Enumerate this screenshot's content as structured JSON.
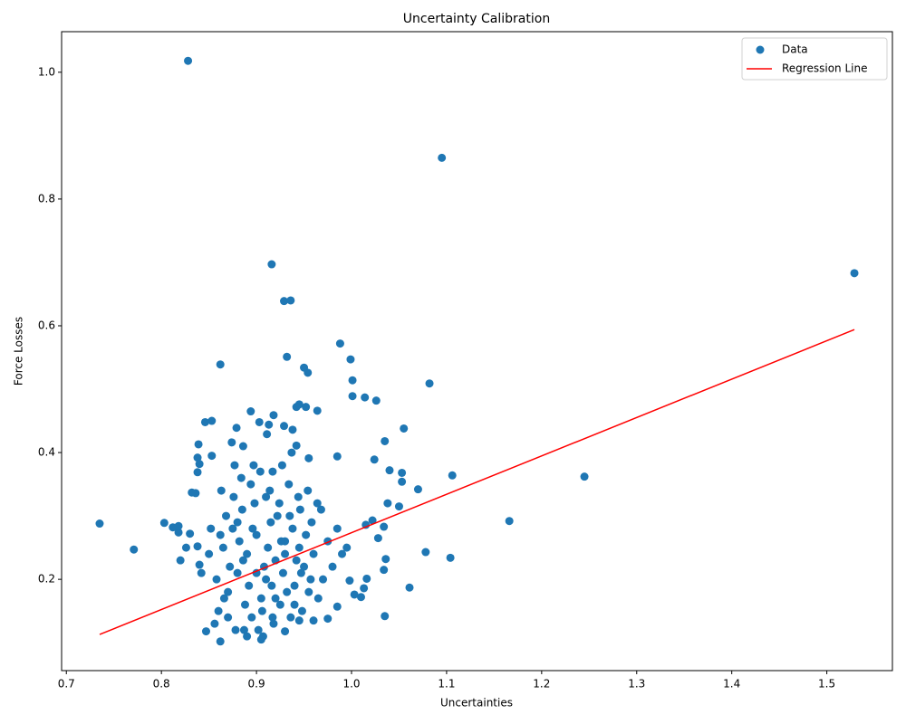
{
  "chart_data": {
    "type": "scatter",
    "title": "Uncertainty Calibration",
    "x_label": "Uncertainties",
    "y_label": "Force Losses",
    "xlim": [
      0.695,
      1.569
    ],
    "ylim": [
      0.056,
      1.064
    ],
    "xticks": [
      0.7,
      0.8,
      0.9,
      {
        "value": 1.0,
        "label": "1.0"
      },
      1.1,
      1.2,
      1.3,
      1.4,
      1.5
    ],
    "yticks": [
      0.2,
      0.4,
      0.6,
      0.8,
      {
        "value": 1.0,
        "label": "1.0"
      }
    ],
    "grid": false,
    "legend": "upper right",
    "series": [
      {
        "name": "Data",
        "type": "scatter",
        "color": "#1f77b4",
        "x": [
          0.828,
          1.095,
          0.916,
          1.529,
          0.929,
          0.936,
          0.862,
          0.988,
          0.932,
          0.999,
          0.95,
          0.954,
          1.001,
          1.082,
          1.001,
          1.014,
          1.026,
          0.945,
          0.942,
          0.952,
          0.964,
          0.894,
          0.918,
          0.846,
          0.853,
          0.903,
          0.913,
          0.929,
          0.879,
          1.055,
          0.938,
          0.911,
          1.035,
          0.839,
          0.874,
          0.942,
          0.886,
          1.106,
          1.245,
          1.166,
          0.735,
          0.771,
          0.803,
          1.07,
          1.053,
          1.04,
          1.024,
          0.985,
          0.955,
          1.104,
          1.078,
          1.061,
          1.035,
          0.862,
          0.905,
          0.93,
          0.847,
          1.053,
          1.05,
          1.038,
          1.034,
          1.022,
          1.015,
          1.028,
          1.036,
          1.034,
          1.016,
          1.01,
          1.003,
          0.818,
          0.812,
          0.818,
          0.83,
          0.82,
          0.826,
          0.838,
          0.84,
          0.842,
          0.836,
          0.832,
          0.838,
          0.84,
          0.838,
          0.853,
          0.975,
          0.945,
          0.96,
          0.985,
          0.998,
          1.013,
          0.86,
          0.87,
          0.88,
          0.89,
          0.9,
          0.91,
          0.92,
          0.93,
          0.94,
          0.95,
          0.865,
          0.875,
          0.885,
          0.895,
          0.905,
          0.915,
          0.925,
          0.935,
          0.945,
          0.955,
          0.858,
          0.868,
          0.878,
          0.888,
          0.898,
          0.908,
          0.918,
          0.928,
          0.938,
          0.948,
          0.862,
          0.872,
          0.882,
          0.892,
          0.902,
          0.912,
          0.922,
          0.932,
          0.942,
          0.952,
          0.856,
          0.866,
          0.876,
          0.886,
          0.896,
          0.906,
          0.916,
          0.926,
          0.936,
          0.946,
          0.87,
          0.88,
          0.89,
          0.9,
          0.91,
          0.92,
          0.93,
          0.94,
          0.96,
          0.97,
          0.975,
          0.98,
          0.99,
          0.965,
          0.958,
          0.968,
          0.985,
          0.995,
          0.85,
          0.852,
          0.863,
          0.884,
          0.894,
          0.904,
          0.914,
          0.924,
          0.934,
          0.944,
          0.954,
          0.964,
          0.877,
          0.897,
          0.917,
          0.937,
          0.927,
          0.907,
          0.887,
          0.917,
          0.957,
          0.947
        ],
        "values": [
          1.018,
          0.865,
          0.697,
          0.683,
          0.639,
          0.64,
          0.539,
          0.572,
          0.551,
          0.547,
          0.534,
          0.526,
          0.514,
          0.509,
          0.489,
          0.487,
          0.482,
          0.476,
          0.472,
          0.472,
          0.466,
          0.465,
          0.459,
          0.448,
          0.45,
          0.448,
          0.444,
          0.442,
          0.439,
          0.438,
          0.436,
          0.429,
          0.418,
          0.413,
          0.416,
          0.411,
          0.41,
          0.364,
          0.362,
          0.292,
          0.288,
          0.247,
          0.289,
          0.342,
          0.368,
          0.372,
          0.389,
          0.394,
          0.391,
          0.234,
          0.243,
          0.187,
          0.142,
          0.102,
          0.105,
          0.118,
          0.118,
          0.354,
          0.315,
          0.32,
          0.283,
          0.293,
          0.286,
          0.265,
          0.232,
          0.215,
          0.201,
          0.172,
          0.176,
          0.274,
          0.282,
          0.284,
          0.272,
          0.23,
          0.25,
          0.252,
          0.223,
          0.21,
          0.336,
          0.337,
          0.369,
          0.382,
          0.392,
          0.395,
          0.138,
          0.135,
          0.135,
          0.157,
          0.198,
          0.186,
          0.15,
          0.18,
          0.21,
          0.24,
          0.27,
          0.2,
          0.23,
          0.26,
          0.19,
          0.22,
          0.25,
          0.28,
          0.31,
          0.14,
          0.17,
          0.29,
          0.16,
          0.3,
          0.25,
          0.18,
          0.2,
          0.3,
          0.12,
          0.16,
          0.32,
          0.22,
          0.13,
          0.21,
          0.28,
          0.15,
          0.27,
          0.22,
          0.26,
          0.19,
          0.12,
          0.25,
          0.3,
          0.18,
          0.23,
          0.27,
          0.13,
          0.17,
          0.33,
          0.23,
          0.28,
          0.15,
          0.19,
          0.26,
          0.14,
          0.31,
          0.14,
          0.29,
          0.11,
          0.21,
          0.33,
          0.17,
          0.24,
          0.16,
          0.24,
          0.2,
          0.26,
          0.22,
          0.24,
          0.17,
          0.29,
          0.31,
          0.28,
          0.25,
          0.24,
          0.28,
          0.34,
          0.36,
          0.35,
          0.37,
          0.34,
          0.32,
          0.35,
          0.33,
          0.34,
          0.32,
          0.38,
          0.38,
          0.37,
          0.4,
          0.38,
          0.11,
          0.12,
          0.14,
          0.2,
          0.21
        ]
      },
      {
        "name": "Regression Line",
        "type": "line",
        "color": "#ff0000",
        "x": [
          0.735,
          1.529
        ],
        "values": [
          0.113,
          0.594
        ]
      }
    ]
  }
}
